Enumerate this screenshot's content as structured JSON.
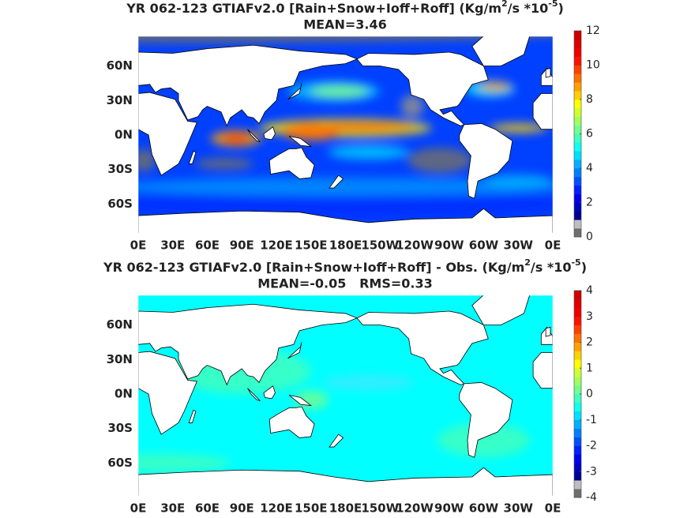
{
  "panels": [
    {
      "title": {
        "prefix": "YR 062-123 GTIAFv2.0 [Rain+Snow+Ioff+Roff] (Kg/m",
        "sup1": "2",
        "mid": "/s *10",
        "sup2": "-5",
        "suffix": ")"
      },
      "stats": "MEAN=3.46",
      "lon_labels": [
        "0E",
        "30E",
        "60E",
        "90E",
        "120E",
        "150E",
        "180E",
        "150W",
        "120W",
        "90W",
        "60W",
        "30W",
        "0E"
      ],
      "lat_labels": [
        "60N",
        "30N",
        "0N",
        "30S",
        "60S"
      ],
      "colorbar": {
        "lim": [
          0,
          12
        ],
        "ticks": [
          0,
          2,
          4,
          6,
          8,
          10,
          12
        ],
        "colors": [
          "#6e6e6e",
          "#bebebe",
          "#00008f",
          "#0000bf",
          "#0000ef",
          "#0020ff",
          "#0050ff",
          "#0080ff",
          "#00b0ff",
          "#00e0ff",
          "#10ffef",
          "#40ffbf",
          "#70ff8f",
          "#a0ff60",
          "#d0ff30",
          "#ffff00",
          "#ffd000",
          "#ffa000",
          "#ff7000",
          "#ff4000",
          "#ff1000",
          "#ef0000",
          "#df0000",
          "#cf0000"
        ]
      }
    },
    {
      "title": {
        "prefix": "YR 062-123 GTIAFv2.0 [Rain+Snow+Ioff+Roff] - Obs. (Kg/m",
        "sup1": "2",
        "mid": "/s *10",
        "sup2": "-5",
        "suffix": ")"
      },
      "stats": "MEAN=-0.05   RMS=0.33",
      "lon_labels": [
        "0E",
        "30E",
        "60E",
        "90E",
        "120E",
        "150E",
        "180E",
        "150W",
        "120W",
        "90W",
        "60W",
        "30W",
        "0E"
      ],
      "lat_labels": [
        "60N",
        "30N",
        "0N",
        "30S",
        "60S"
      ],
      "colorbar": {
        "lim": [
          -4,
          4
        ],
        "ticks": [
          -4,
          -3,
          -2,
          -1,
          0,
          1,
          2,
          3,
          4
        ],
        "colors": [
          "#6e6e6e",
          "#bebebe",
          "#00008f",
          "#0000bf",
          "#0000ef",
          "#0020ff",
          "#0050ff",
          "#0080ff",
          "#00b0ff",
          "#00e0ff",
          "#10ffef",
          "#40ffbf",
          "#70ff8f",
          "#a0ff60",
          "#d0ff30",
          "#ffff00",
          "#ffd000",
          "#ffa000",
          "#ff7000",
          "#ff4000",
          "#ff1000",
          "#ef0000",
          "#df0000",
          "#cf0000"
        ]
      }
    }
  ]
}
